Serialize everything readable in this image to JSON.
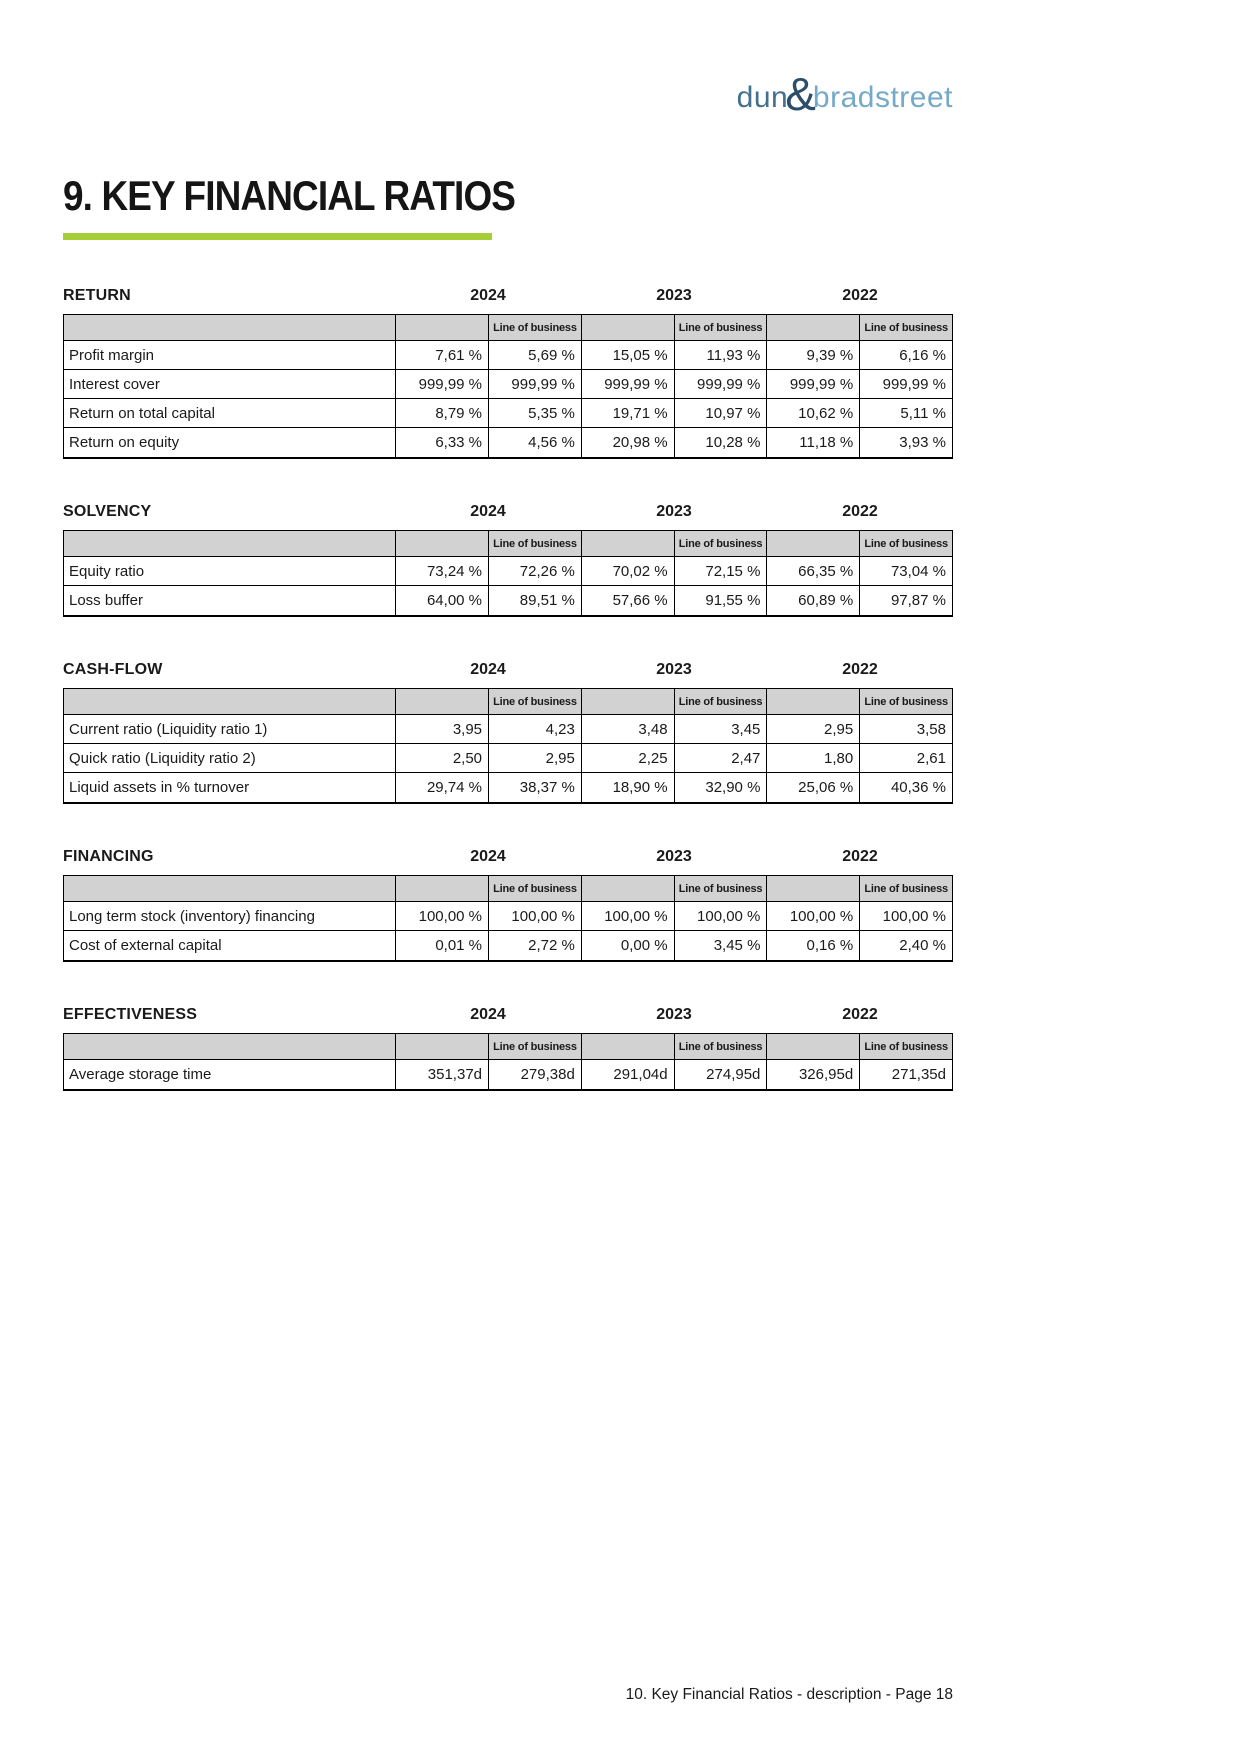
{
  "logo": {
    "dun": "dun",
    "amp": "&",
    "bradstreet": "bradstreet"
  },
  "page_title": "9. KEY FINANCIAL RATIOS",
  "footer": "10. Key Financial Ratios - description - Page 18",
  "years": [
    "2024",
    "2023",
    "2022"
  ],
  "line_of_business_label": "Line of business",
  "colors": {
    "accent_green": "#a6ce39",
    "header_gray": "#d2d2d2",
    "logo_dun": "#41718f",
    "logo_amp": "#2d4e6b",
    "logo_bradstreet": "#74aac8"
  },
  "sections": [
    {
      "title": "RETURN",
      "rows": [
        {
          "label": "Profit margin",
          "values": [
            "7,61 %",
            "5,69 %",
            "15,05 %",
            "11,93 %",
            "9,39 %",
            "6,16 %"
          ]
        },
        {
          "label": "Interest cover",
          "values": [
            "999,99 %",
            "999,99 %",
            "999,99 %",
            "999,99 %",
            "999,99 %",
            "999,99 %"
          ]
        },
        {
          "label": "Return on total capital",
          "values": [
            "8,79 %",
            "5,35 %",
            "19,71 %",
            "10,97 %",
            "10,62 %",
            "5,11 %"
          ]
        },
        {
          "label": "Return on equity",
          "values": [
            "6,33 %",
            "4,56 %",
            "20,98 %",
            "10,28 %",
            "11,18 %",
            "3,93 %"
          ]
        }
      ]
    },
    {
      "title": "SOLVENCY",
      "rows": [
        {
          "label": "Equity ratio",
          "values": [
            "73,24 %",
            "72,26 %",
            "70,02 %",
            "72,15 %",
            "66,35 %",
            "73,04 %"
          ]
        },
        {
          "label": "Loss buffer",
          "values": [
            "64,00 %",
            "89,51 %",
            "57,66 %",
            "91,55 %",
            "60,89 %",
            "97,87 %"
          ]
        }
      ]
    },
    {
      "title": "CASH-FLOW",
      "rows": [
        {
          "label": "Current ratio (Liquidity ratio 1)",
          "values": [
            "3,95",
            "4,23",
            "3,48",
            "3,45",
            "2,95",
            "3,58"
          ]
        },
        {
          "label": "Quick ratio (Liquidity ratio 2)",
          "values": [
            "2,50",
            "2,95",
            "2,25",
            "2,47",
            "1,80",
            "2,61"
          ]
        },
        {
          "label": "Liquid assets in % turnover",
          "values": [
            "29,74 %",
            "38,37 %",
            "18,90 %",
            "32,90 %",
            "25,06 %",
            "40,36 %"
          ]
        }
      ]
    },
    {
      "title": "FINANCING",
      "rows": [
        {
          "label": "Long term stock (inventory) financing",
          "values": [
            "100,00 %",
            "100,00 %",
            "100,00 %",
            "100,00 %",
            "100,00 %",
            "100,00 %"
          ]
        },
        {
          "label": "Cost of external capital",
          "values": [
            "0,01 %",
            "2,72 %",
            "0,00 %",
            "3,45 %",
            "0,16 %",
            "2,40 %"
          ]
        }
      ]
    },
    {
      "title": "EFFECTIVENESS",
      "rows": [
        {
          "label": "Average storage time",
          "values": [
            "351,37d",
            "279,38d",
            "291,04d",
            "274,95d",
            "326,95d",
            "271,35d"
          ]
        }
      ]
    }
  ]
}
